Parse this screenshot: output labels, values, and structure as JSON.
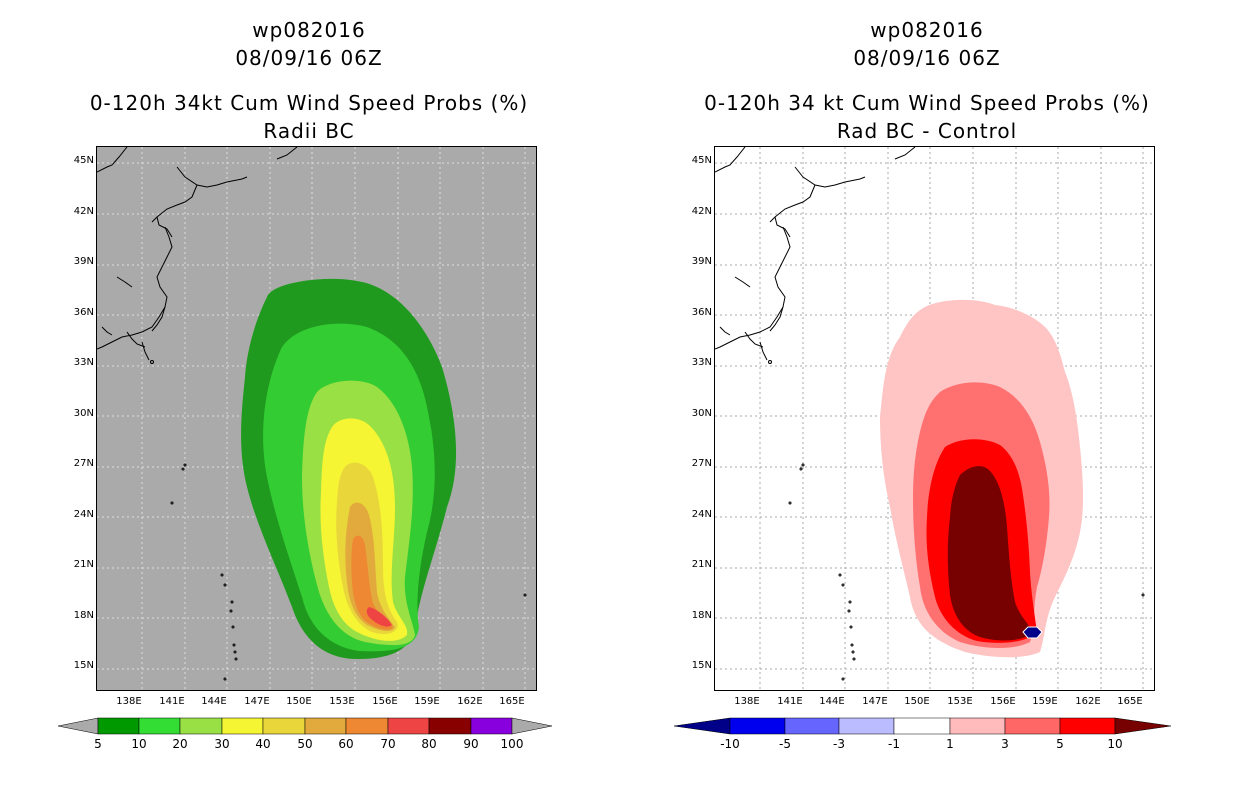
{
  "left": {
    "storm_id": "wp082016",
    "datetime": "08/09/16 06Z",
    "title": "0-120h 34kt Cum Wind Speed Probs (%)",
    "subtitle": "Radii BC",
    "colorbar": {
      "labels": [
        "5",
        "10",
        "20",
        "30",
        "40",
        "50",
        "60",
        "70",
        "80",
        "90",
        "100"
      ],
      "colors": [
        "#009900",
        "#33dd33",
        "#99e044",
        "#f5f533",
        "#e8d63a",
        "#e2aa3c",
        "#ee8833",
        "#ee4444",
        "#880000",
        "#8800dd"
      ],
      "end_color": "#aaaaaa"
    },
    "colors": {
      "background": "#aaaaaa",
      "p5": "#1f9a1f",
      "p10": "#33cc33",
      "p20": "#99e044",
      "p30": "#f5f533",
      "p40": "#e8d63a",
      "p50": "#e2aa3c",
      "p60": "#ee8833",
      "p70": "#ee4444"
    }
  },
  "right": {
    "storm_id": "wp082016",
    "datetime": "08/09/16 06Z",
    "title": "0-120h 34 kt Cum Wind Speed Probs (%)",
    "subtitle": "Rad BC - Control",
    "colorbar": {
      "labels": [
        "-10",
        "-5",
        "-3",
        "-1",
        "1",
        "3",
        "5",
        "10"
      ],
      "colors": [
        "#0000ee",
        "#6666ff",
        "#bbbbff",
        "#ffffff",
        "#ffbbbb",
        "#ff6666",
        "#ff0000"
      ],
      "low_color": "#000088",
      "high_color": "#770000"
    },
    "colors": {
      "background": "#ffffff",
      "d1": "#ffc4c4",
      "d3": "#ff7070",
      "d5": "#ff0000",
      "d10": "#770000",
      "neg": "#000088"
    }
  },
  "axes": {
    "lat_labels": [
      "45N",
      "42N",
      "39N",
      "36N",
      "33N",
      "30N",
      "27N",
      "24N",
      "21N",
      "18N",
      "15N"
    ],
    "lon_labels": [
      "138E",
      "141E",
      "144E",
      "147E",
      "150E",
      "153E",
      "156E",
      "159E",
      "162E",
      "165E"
    ]
  }
}
